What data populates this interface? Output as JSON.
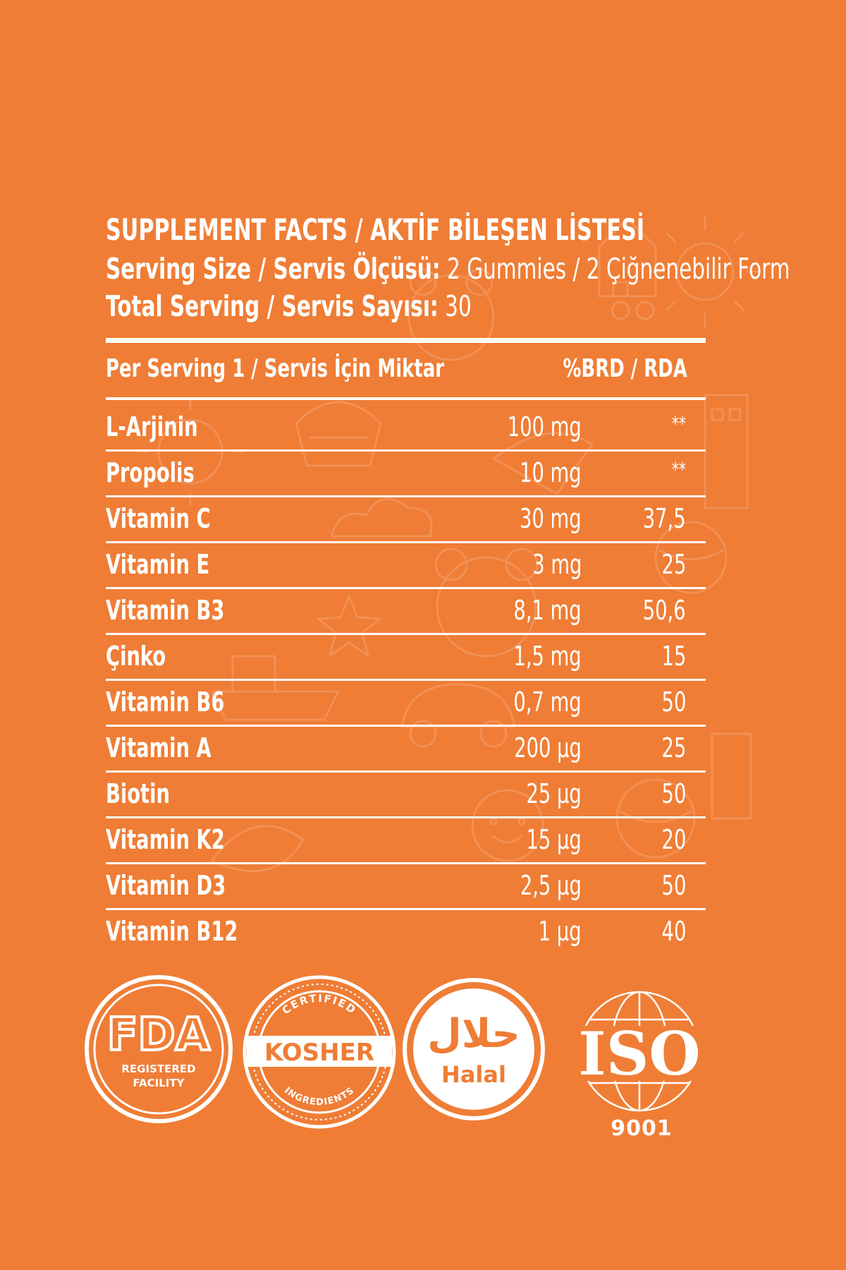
{
  "colors": {
    "background": "#ef7d35",
    "text": "#ffffff",
    "doodle": "#f5a070"
  },
  "header": {
    "title": "SUPPLEMENT FACTS / AKTİF BİLEŞEN LİSTESİ",
    "serving_label": "Serving Size / Servis Ölçüsü:",
    "serving_value": "2 Gummies / 2 Çiğnenebilir Form",
    "total_label": "Total Serving / Servis Sayısı:",
    "total_value": "30"
  },
  "columns": {
    "left": "Per Serving 1 / Servis İçin Miktar",
    "right": "%BRD / RDA"
  },
  "rows": [
    {
      "name": "L-Arjinin",
      "amount": "100 mg",
      "rda": "**"
    },
    {
      "name": "Propolis",
      "amount": "10 mg",
      "rda": "**"
    },
    {
      "name": "Vitamin C",
      "amount": "30 mg",
      "rda": "37,5"
    },
    {
      "name": "Vitamin E",
      "amount": "3 mg",
      "rda": "25"
    },
    {
      "name": "Vitamin B3",
      "amount": "8,1 mg",
      "rda": "50,6"
    },
    {
      "name": "Çinko",
      "amount": "1,5 mg",
      "rda": "15"
    },
    {
      "name": "Vitamin B6",
      "amount": "0,7 mg",
      "rda": "50"
    },
    {
      "name": "Vitamin A",
      "amount": "200 µg",
      "rda": "25"
    },
    {
      "name": "Biotin",
      "amount": "25 µg",
      "rda": "50"
    },
    {
      "name": "Vitamin K2",
      "amount": "15 µg",
      "rda": "20"
    },
    {
      "name": "Vitamin D3",
      "amount": "2,5 µg",
      "rda": "50"
    },
    {
      "name": "Vitamin B12",
      "amount": "1 µg",
      "rda": "40"
    }
  ],
  "badges": {
    "fda": {
      "logo": "FDA",
      "line1": "REGISTERED",
      "line2": "FACILITY"
    },
    "kosher": {
      "top": "CERTIFIED",
      "main": "KOSHER",
      "bottom": "INGREDIENTS"
    },
    "halal": {
      "arabic": "حلال",
      "label": "Halal"
    },
    "iso": {
      "logo": "ISO",
      "number": "9001"
    }
  }
}
